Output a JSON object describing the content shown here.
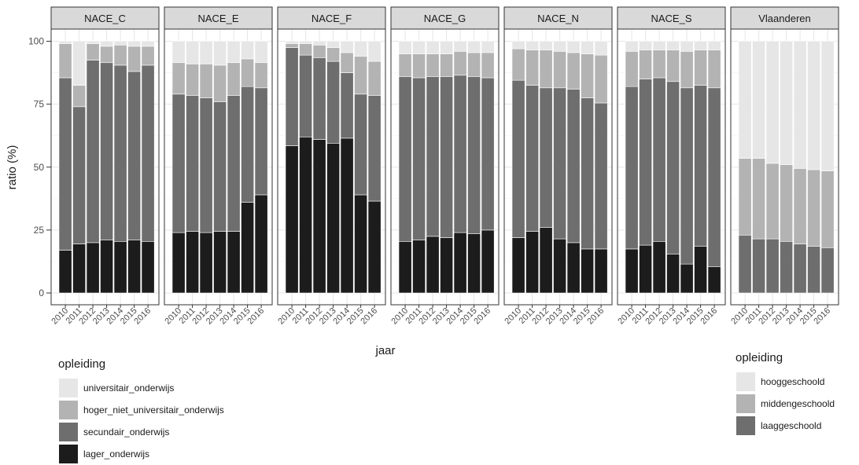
{
  "chart_data": {
    "type": "bar",
    "stacked": true,
    "ylabel": "ratio (%)",
    "xlabel": "jaar",
    "ylim": [
      0,
      100
    ],
    "yticks": [
      0,
      25,
      50,
      75,
      100
    ],
    "years": [
      "2010",
      "2011",
      "2012",
      "2013",
      "2014",
      "2015",
      "2016"
    ],
    "grid": true,
    "legend_placement": "bottom",
    "panels": [
      {
        "name": "NACE_C",
        "series": [
          {
            "key": "lager_onderwijs",
            "values": [
              17,
              19.5,
              20,
              21,
              20.5,
              21,
              20.5
            ]
          },
          {
            "key": "secundair_onderwijs",
            "values": [
              68.5,
              54.5,
              72.5,
              70.5,
              70,
              67,
              70
            ]
          },
          {
            "key": "hoger_niet_universitair_onderwijs",
            "values": [
              13.5,
              8.5,
              6.5,
              6.5,
              8,
              10,
              7.5
            ]
          },
          {
            "key": "universitair_onderwijs",
            "values": [
              1,
              17.5,
              1,
              2,
              1.5,
              2,
              2
            ]
          }
        ]
      },
      {
        "name": "NACE_E",
        "series": [
          {
            "key": "lager_onderwijs",
            "values": [
              24,
              24.5,
              24,
              24.5,
              24.5,
              36,
              39
            ]
          },
          {
            "key": "secundair_onderwijs",
            "values": [
              55,
              54,
              53.5,
              51.5,
              54,
              46,
              42.5
            ]
          },
          {
            "key": "hoger_niet_universitair_onderwijs",
            "values": [
              12.5,
              12.5,
              13.5,
              14.5,
              13,
              11,
              10
            ]
          },
          {
            "key": "universitair_onderwijs",
            "values": [
              8.5,
              9,
              9,
              9.5,
              8.5,
              7,
              8.5
            ]
          }
        ]
      },
      {
        "name": "NACE_F",
        "series": [
          {
            "key": "lager_onderwijs",
            "values": [
              58.5,
              62,
              61,
              59.5,
              61.5,
              39,
              36.5
            ]
          },
          {
            "key": "secundair_onderwijs",
            "values": [
              39,
              32.5,
              32.5,
              32.5,
              26,
              40,
              42
            ]
          },
          {
            "key": "hoger_niet_universitair_onderwijs",
            "values": [
              1.5,
              4.5,
              5,
              5.5,
              8,
              15,
              13.5
            ]
          },
          {
            "key": "universitair_onderwijs",
            "values": [
              1,
              1,
              1.5,
              2.5,
              4.5,
              6,
              8
            ]
          }
        ]
      },
      {
        "name": "NACE_G",
        "series": [
          {
            "key": "lager_onderwijs",
            "values": [
              20.5,
              21,
              22.5,
              22,
              24,
              23.5,
              25
            ]
          },
          {
            "key": "secundair_onderwijs",
            "values": [
              65.5,
              64.5,
              63.5,
              64,
              62.5,
              62.5,
              60.5
            ]
          },
          {
            "key": "hoger_niet_universitair_onderwijs",
            "values": [
              9,
              9.5,
              9,
              9,
              9.5,
              9.5,
              10
            ]
          },
          {
            "key": "universitair_onderwijs",
            "values": [
              5,
              5,
              5,
              5,
              4,
              4.5,
              4.5
            ]
          }
        ]
      },
      {
        "name": "NACE_N",
        "series": [
          {
            "key": "lager_onderwijs",
            "values": [
              22,
              24.5,
              26,
              21.5,
              20,
              17.5,
              17.5
            ]
          },
          {
            "key": "secundair_onderwijs",
            "values": [
              62.5,
              58,
              55.5,
              60,
              61,
              60,
              58
            ]
          },
          {
            "key": "hoger_niet_universitair_onderwijs",
            "values": [
              12.5,
              14,
              15,
              14.5,
              14.5,
              17.5,
              19
            ]
          },
          {
            "key": "universitair_onderwijs",
            "values": [
              3,
              3.5,
              3.5,
              4,
              4.5,
              5,
              5.5
            ]
          }
        ]
      },
      {
        "name": "NACE_S",
        "series": [
          {
            "key": "lager_onderwijs",
            "values": [
              17.5,
              19,
              20.5,
              15.5,
              11.5,
              18.5,
              10.5
            ]
          },
          {
            "key": "secundair_onderwijs",
            "values": [
              64.5,
              66,
              65,
              68.5,
              70,
              64,
              71
            ]
          },
          {
            "key": "hoger_niet_universitair_onderwijs",
            "values": [
              14,
              11.5,
              11,
              12.5,
              14.5,
              14,
              15
            ]
          },
          {
            "key": "universitair_onderwijs",
            "values": [
              4,
              3.5,
              3.5,
              3.5,
              4,
              3.5,
              3.5
            ]
          }
        ]
      },
      {
        "name": "Vlaanderen",
        "series": [
          {
            "key": "laaggeschoold",
            "values": [
              23,
              21.5,
              21.5,
              20.5,
              19.5,
              18.5,
              18
            ]
          },
          {
            "key": "middengeschoold",
            "values": [
              30.5,
              32,
              30,
              30.5,
              30,
              30.5,
              30.5
            ]
          },
          {
            "key": "hooggeschoold",
            "values": [
              46.5,
              46.5,
              48.5,
              49,
              50.5,
              51,
              51.5
            ]
          }
        ]
      }
    ]
  },
  "legend_left": {
    "title": "opleiding",
    "items": [
      {
        "key": "universitair_onderwijs",
        "label": "universitair_onderwijs",
        "color": "#e6e6e6"
      },
      {
        "key": "hoger_niet_universitair_onderwijs",
        "label": "hoger_niet_universitair_onderwijs",
        "color": "#b3b3b3"
      },
      {
        "key": "secundair_onderwijs",
        "label": "secundair_onderwijs",
        "color": "#6e6e6e"
      },
      {
        "key": "lager_onderwijs",
        "label": "lager_onderwijs",
        "color": "#1c1c1c"
      }
    ]
  },
  "legend_right": {
    "title": "opleiding",
    "items": [
      {
        "key": "hooggeschoold",
        "label": "hooggeschoold",
        "color": "#e6e6e6"
      },
      {
        "key": "middengeschoold",
        "label": "middengeschoold",
        "color": "#b3b3b3"
      },
      {
        "key": "laaggeschoold",
        "label": "laaggeschoold",
        "color": "#6e6e6e"
      }
    ]
  }
}
